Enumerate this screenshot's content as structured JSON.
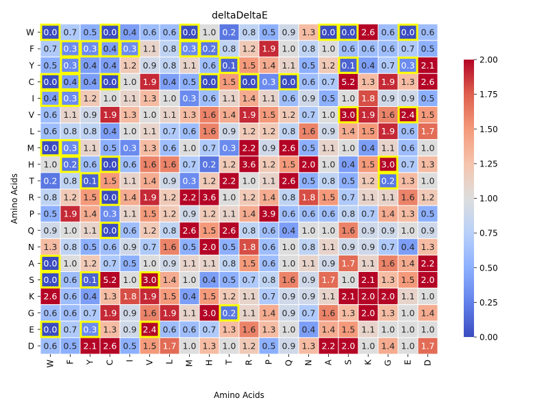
{
  "chart_data": {
    "type": "heatmap",
    "title": "deltaDeltaE",
    "xlabel": "Amino Acids",
    "ylabel": "Amino Acids",
    "x_categories": [
      "W",
      "F",
      "Y",
      "C",
      "I",
      "V",
      "L",
      "M",
      "H",
      "T",
      "R",
      "P",
      "Q",
      "N",
      "A",
      "S",
      "K",
      "G",
      "E",
      "D"
    ],
    "y_categories": [
      "W",
      "F",
      "Y",
      "C",
      "I",
      "V",
      "L",
      "M",
      "H",
      "T",
      "R",
      "P",
      "Q",
      "N",
      "A",
      "S",
      "K",
      "G",
      "E",
      "D"
    ],
    "values": [
      [
        0.0,
        0.7,
        0.5,
        0.0,
        0.4,
        0.6,
        0.6,
        0.0,
        1.0,
        0.2,
        0.8,
        0.5,
        0.9,
        1.3,
        0.0,
        0.0,
        2.6,
        0.6,
        0.0,
        0.6
      ],
      [
        0.7,
        0.3,
        0.3,
        0.4,
        0.3,
        1.1,
        0.8,
        0.3,
        0.2,
        0.8,
        1.2,
        1.9,
        1.0,
        0.8,
        1.0,
        0.6,
        0.6,
        0.6,
        0.7,
        0.5
      ],
      [
        0.5,
        0.3,
        0.4,
        0.4,
        1.2,
        0.9,
        0.8,
        1.1,
        0.6,
        0.1,
        1.5,
        1.4,
        1.1,
        0.5,
        1.2,
        0.1,
        0.4,
        0.7,
        0.3,
        2.1
      ],
      [
        0.0,
        0.4,
        0.4,
        0.0,
        1.0,
        1.9,
        0.4,
        0.5,
        0.0,
        1.5,
        0.0,
        0.3,
        0.0,
        0.6,
        0.7,
        5.2,
        1.3,
        1.9,
        1.3,
        2.6
      ],
      [
        0.4,
        0.3,
        1.2,
        1.0,
        1.1,
        1.3,
        1.0,
        0.3,
        0.6,
        1.1,
        1.4,
        1.1,
        0.6,
        0.9,
        0.5,
        1.0,
        1.8,
        0.9,
        0.9,
        0.5
      ],
      [
        0.6,
        1.1,
        0.9,
        1.9,
        1.3,
        1.0,
        1.1,
        1.3,
        1.6,
        1.4,
        1.9,
        1.5,
        1.2,
        0.7,
        1.0,
        3.0,
        1.9,
        1.6,
        2.4,
        1.5
      ],
      [
        0.6,
        0.8,
        0.8,
        0.4,
        1.0,
        1.1,
        0.7,
        0.6,
        1.6,
        0.9,
        1.2,
        1.2,
        0.8,
        1.6,
        0.9,
        1.4,
        1.5,
        1.9,
        0.6,
        1.7
      ],
      [
        0.0,
        0.3,
        1.1,
        0.5,
        0.3,
        1.3,
        0.6,
        1.0,
        0.7,
        0.3,
        2.2,
        0.9,
        2.6,
        0.5,
        1.1,
        1.0,
        0.4,
        1.1,
        0.6,
        1.0
      ],
      [
        1.0,
        0.2,
        0.6,
        0.0,
        0.6,
        1.6,
        1.6,
        0.7,
        0.2,
        1.2,
        3.6,
        1.2,
        1.5,
        2.0,
        1.0,
        0.4,
        1.5,
        3.0,
        0.7,
        1.3
      ],
      [
        0.2,
        0.8,
        0.1,
        1.5,
        1.1,
        1.4,
        0.9,
        0.3,
        1.2,
        2.2,
        1.0,
        1.1,
        2.6,
        0.5,
        0.8,
        0.5,
        1.2,
        0.2,
        1.3,
        1.0
      ],
      [
        0.8,
        1.2,
        1.5,
        0.0,
        1.4,
        1.9,
        1.2,
        2.2,
        3.6,
        1.0,
        1.2,
        1.4,
        0.8,
        1.8,
        1.5,
        0.7,
        1.1,
        1.1,
        1.6,
        1.2
      ],
      [
        0.5,
        1.9,
        1.4,
        0.3,
        1.1,
        1.5,
        1.2,
        0.9,
        1.2,
        1.1,
        1.4,
        3.9,
        0.6,
        0.6,
        0.6,
        0.8,
        0.7,
        1.4,
        1.3,
        0.5
      ],
      [
        0.9,
        1.0,
        1.1,
        0.0,
        0.6,
        1.2,
        0.8,
        2.6,
        1.5,
        2.6,
        0.8,
        0.6,
        0.4,
        1.0,
        1.0,
        1.6,
        0.9,
        0.9,
        1.0,
        0.9
      ],
      [
        1.3,
        0.8,
        0.5,
        0.6,
        0.9,
        0.7,
        1.6,
        0.5,
        2.0,
        0.5,
        1.8,
        0.6,
        1.0,
        0.8,
        1.1,
        0.9,
        0.9,
        0.7,
        0.4,
        1.3
      ],
      [
        0.0,
        1.0,
        1.2,
        0.7,
        0.5,
        1.0,
        0.9,
        1.1,
        1.1,
        0.8,
        1.5,
        0.6,
        1.0,
        1.1,
        0.9,
        1.7,
        1.1,
        1.6,
        1.4,
        2.2
      ],
      [
        0.0,
        0.6,
        0.1,
        5.2,
        1.0,
        3.0,
        1.4,
        1.0,
        0.4,
        0.5,
        0.7,
        0.8,
        1.6,
        0.9,
        1.7,
        1.0,
        2.1,
        1.3,
        1.5,
        2.0
      ],
      [
        2.6,
        0.6,
        0.4,
        1.3,
        1.8,
        1.9,
        1.5,
        0.4,
        1.5,
        1.2,
        1.1,
        0.7,
        0.9,
        0.9,
        1.1,
        2.1,
        2.0,
        2.0,
        1.1,
        1.0
      ],
      [
        0.6,
        0.6,
        0.7,
        1.9,
        0.9,
        1.6,
        1.9,
        1.1,
        3.0,
        0.2,
        1.1,
        1.4,
        0.9,
        0.7,
        1.6,
        1.3,
        2.0,
        1.3,
        1.0,
        1.4
      ],
      [
        0.0,
        0.7,
        0.3,
        1.3,
        0.9,
        2.4,
        0.6,
        0.6,
        0.7,
        1.3,
        1.6,
        1.3,
        1.0,
        0.4,
        1.4,
        1.5,
        1.1,
        1.0,
        1.0,
        1.0
      ],
      [
        0.6,
        0.5,
        2.1,
        2.6,
        0.5,
        1.5,
        1.7,
        1.0,
        1.3,
        1.0,
        1.2,
        0.5,
        0.9,
        1.3,
        2.2,
        2.0,
        1.0,
        1.4,
        1.0,
        1.7
      ]
    ],
    "highlighted_cells": [
      [
        0,
        0
      ],
      [
        0,
        3
      ],
      [
        0,
        7
      ],
      [
        0,
        14
      ],
      [
        0,
        15
      ],
      [
        0,
        18
      ],
      [
        1,
        1
      ],
      [
        1,
        2
      ],
      [
        1,
        3
      ],
      [
        1,
        4
      ],
      [
        1,
        7
      ],
      [
        1,
        8
      ],
      [
        2,
        1
      ],
      [
        2,
        9
      ],
      [
        2,
        15
      ],
      [
        2,
        18
      ],
      [
        3,
        0
      ],
      [
        3,
        1
      ],
      [
        3,
        3
      ],
      [
        3,
        8
      ],
      [
        3,
        10
      ],
      [
        3,
        12
      ],
      [
        4,
        0
      ],
      [
        4,
        1
      ],
      [
        5,
        15
      ],
      [
        5,
        18
      ],
      [
        7,
        0
      ],
      [
        7,
        1
      ],
      [
        8,
        1
      ],
      [
        8,
        3
      ],
      [
        8,
        17
      ],
      [
        9,
        2
      ],
      [
        9,
        17
      ],
      [
        10,
        3
      ],
      [
        12,
        3
      ],
      [
        14,
        0
      ],
      [
        15,
        0
      ],
      [
        15,
        2
      ],
      [
        15,
        5
      ],
      [
        17,
        9
      ],
      [
        18,
        0
      ],
      [
        18,
        2
      ],
      [
        18,
        5
      ]
    ],
    "highlight_color": "#ffff00",
    "colormap": "coolwarm",
    "vmin": 0.0,
    "vmax": 2.0,
    "colorbar_ticks": [
      "0.00",
      "0.25",
      "0.50",
      "0.75",
      "1.00",
      "1.25",
      "1.50",
      "1.75",
      "2.00"
    ],
    "grid": false,
    "legend": "colorbar-right"
  }
}
